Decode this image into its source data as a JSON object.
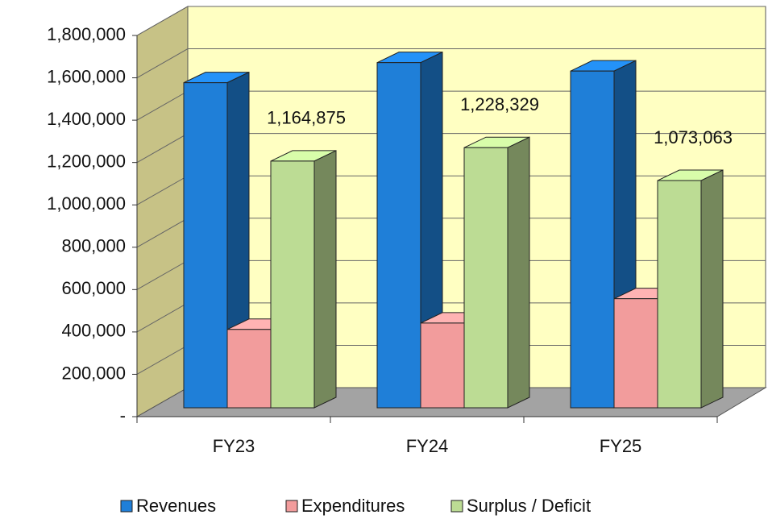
{
  "chart_data": {
    "type": "bar3d",
    "categories": [
      "FY23",
      "FY24",
      "FY25"
    ],
    "series": [
      {
        "name": "Revenues",
        "color": "#1f7fd8",
        "values": [
          1535000,
          1630000,
          1590000
        ]
      },
      {
        "name": "Expenditures",
        "color": "#f29c9c",
        "values": [
          370000,
          400000,
          515000
        ]
      },
      {
        "name": "Surplus / Deficit",
        "color": "#bcdc94",
        "values": [
          1164875,
          1228329,
          1073063
        ],
        "value_labels": [
          "1,164,875",
          "1,228,329",
          "1,073,063"
        ]
      }
    ],
    "ylim": [
      0,
      1800000
    ],
    "yticks": [
      {
        "value": 0,
        "label": "-"
      },
      {
        "value": 200000,
        "label": "200,000"
      },
      {
        "value": 400000,
        "label": "400,000"
      },
      {
        "value": 600000,
        "label": "600,000"
      },
      {
        "value": 800000,
        "label": "800,000"
      },
      {
        "value": 1000000,
        "label": "1,000,000"
      },
      {
        "value": 1200000,
        "label": "1,200,000"
      },
      {
        "value": 1400000,
        "label": "1,400,000"
      },
      {
        "value": 1600000,
        "label": "1,600,000"
      },
      {
        "value": 1800000,
        "label": "1,800,000"
      }
    ],
    "grid": true,
    "legend": "bottom"
  }
}
